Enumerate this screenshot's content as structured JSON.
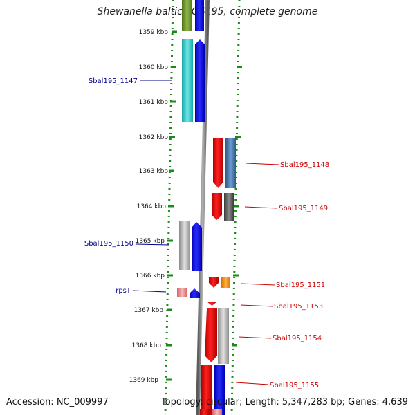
{
  "title": "Shewanella baltica OS195, complete genome",
  "footer": {
    "accession": "Accession: NC_009997",
    "topology": "Topology: circular; Length: 5,347,283 bp; Genes: 4,639"
  },
  "colors": {
    "backbone": "#888888",
    "tick": "#1a8a1a",
    "left_label": "#00008b",
    "right_label": "#cc0000"
  },
  "scale": {
    "ticks": [
      "1359 kbp",
      "1360 kbp",
      "1361 kbp",
      "1362 kbp",
      "1363 kbp",
      "1364 kbp",
      "1365 kbp",
      "1366 kbp",
      "1367 kbp",
      "1368 kbp",
      "1369 kbp"
    ]
  },
  "labels": {
    "left": [
      "Sbal195_1147",
      "Sbal195_1150",
      "rpsT"
    ],
    "right": [
      "Sbal195_1148",
      "Sbal195_1149",
      "Sbal195_1151",
      "Sbal195_1153",
      "Sbal195_1154",
      "Sbal195_1155"
    ]
  }
}
